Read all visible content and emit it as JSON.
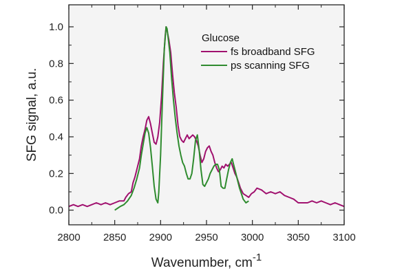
{
  "chart_data": {
    "type": "line",
    "title": "",
    "xlabel": "Wavenumber, cm",
    "xlabel_superscript": "-1",
    "ylabel": "SFG signal, a.u.",
    "xlim": [
      2800,
      3100
    ],
    "ylim": [
      -0.08,
      1.12
    ],
    "xticks": [
      2800,
      2850,
      2900,
      2950,
      3000,
      3050,
      3100
    ],
    "xtick_labels": [
      "2800",
      "2850",
      "2900",
      "2950",
      "3000",
      "3050",
      "3100"
    ],
    "yticks": [
      0.0,
      0.2,
      0.4,
      0.6,
      0.8,
      1.0
    ],
    "ytick_labels": [
      "0.0",
      "0.2",
      "0.4",
      "0.6",
      "0.8",
      "1.0"
    ],
    "grid": false,
    "legend": {
      "title": "Glucose",
      "placement": "top-right"
    },
    "background": "#f4f4f4",
    "series": [
      {
        "name": "fs broadband SFG",
        "color": "#a0106e",
        "x": [
          2800,
          2805,
          2810,
          2815,
          2820,
          2825,
          2830,
          2835,
          2840,
          2845,
          2850,
          2855,
          2860,
          2862,
          2865,
          2868,
          2870,
          2872,
          2875,
          2877,
          2879,
          2881,
          2883,
          2885,
          2887,
          2889,
          2891,
          2893,
          2895,
          2897,
          2899,
          2901,
          2903,
          2905,
          2906,
          2907,
          2909,
          2911,
          2913,
          2915,
          2917,
          2919,
          2921,
          2923,
          2925,
          2927,
          2929,
          2931,
          2933,
          2935,
          2937,
          2939,
          2941,
          2943,
          2945,
          2947,
          2949,
          2951,
          2953,
          2955,
          2957,
          2959,
          2961,
          2963,
          2965,
          2967,
          2969,
          2971,
          2973,
          2975,
          2977,
          2979,
          2981,
          2983,
          2985,
          2987,
          2990,
          2993,
          2996,
          2999,
          3002,
          3005,
          3010,
          3015,
          3020,
          3025,
          3030,
          3035,
          3040,
          3045,
          3050,
          3055,
          3060,
          3065,
          3070,
          3075,
          3080,
          3085,
          3090,
          3095,
          3100
        ],
        "values": [
          0.02,
          0.03,
          0.02,
          0.03,
          0.02,
          0.03,
          0.04,
          0.03,
          0.04,
          0.03,
          0.04,
          0.05,
          0.05,
          0.07,
          0.09,
          0.1,
          0.15,
          0.18,
          0.24,
          0.28,
          0.35,
          0.4,
          0.44,
          0.49,
          0.51,
          0.47,
          0.42,
          0.37,
          0.36,
          0.4,
          0.48,
          0.62,
          0.8,
          0.95,
          1.0,
          0.98,
          0.93,
          0.86,
          0.74,
          0.64,
          0.56,
          0.46,
          0.4,
          0.38,
          0.37,
          0.39,
          0.41,
          0.39,
          0.4,
          0.41,
          0.4,
          0.38,
          0.35,
          0.3,
          0.26,
          0.28,
          0.32,
          0.34,
          0.35,
          0.32,
          0.3,
          0.26,
          0.23,
          0.21,
          0.22,
          0.24,
          0.23,
          0.25,
          0.24,
          0.25,
          0.26,
          0.23,
          0.2,
          0.18,
          0.15,
          0.12,
          0.09,
          0.08,
          0.07,
          0.09,
          0.1,
          0.12,
          0.11,
          0.09,
          0.1,
          0.09,
          0.1,
          0.08,
          0.07,
          0.06,
          0.04,
          0.04,
          0.04,
          0.05,
          0.04,
          0.05,
          0.04,
          0.03,
          0.04,
          0.03,
          0.02
        ]
      },
      {
        "name": "ps scanning SFG",
        "color": "#2e8b2e",
        "x": [
          2850,
          2853,
          2856,
          2860,
          2864,
          2868,
          2871,
          2874,
          2877,
          2879,
          2881,
          2883,
          2885,
          2887,
          2889,
          2891,
          2893,
          2895,
          2897,
          2898,
          2900,
          2902,
          2904,
          2906,
          2907,
          2908,
          2910,
          2912,
          2914,
          2916,
          2918,
          2920,
          2922,
          2924,
          2926,
          2928,
          2930,
          2932,
          2934,
          2936,
          2938,
          2940,
          2942,
          2944,
          2946,
          2948,
          2950,
          2952,
          2954,
          2956,
          2958,
          2960,
          2962,
          2964,
          2966,
          2968,
          2970,
          2972,
          2974,
          2976,
          2978,
          2980,
          2982,
          2984,
          2986,
          2988,
          2990,
          2993,
          2996
        ],
        "values": [
          0.0,
          0.01,
          0.02,
          0.03,
          0.05,
          0.08,
          0.12,
          0.17,
          0.23,
          0.3,
          0.36,
          0.42,
          0.45,
          0.42,
          0.34,
          0.24,
          0.13,
          0.06,
          0.04,
          0.1,
          0.3,
          0.6,
          0.88,
          1.0,
          0.99,
          0.95,
          0.86,
          0.72,
          0.6,
          0.5,
          0.42,
          0.35,
          0.3,
          0.26,
          0.24,
          0.2,
          0.17,
          0.17,
          0.2,
          0.28,
          0.38,
          0.41,
          0.33,
          0.22,
          0.14,
          0.13,
          0.15,
          0.17,
          0.2,
          0.22,
          0.24,
          0.25,
          0.25,
          0.22,
          0.13,
          0.12,
          0.12,
          0.17,
          0.22,
          0.26,
          0.28,
          0.24,
          0.2,
          0.16,
          0.12,
          0.09,
          0.06,
          0.04,
          0.05
        ]
      }
    ]
  }
}
